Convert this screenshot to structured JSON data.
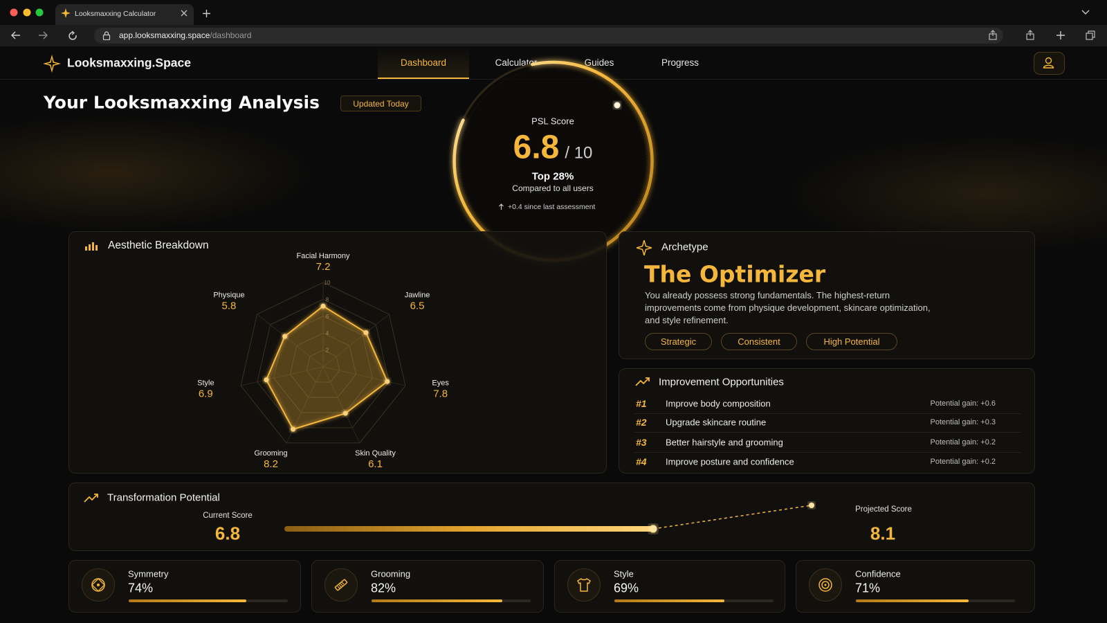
{
  "browser": {
    "tab_title": "Looksmaxxing Calculator",
    "url": {
      "host": "app.looksmaxxing.space",
      "path": "/dashboard"
    }
  },
  "nav": {
    "brand": "Looksmaxxing.Space",
    "links": [
      "Dashboard",
      "Calculator",
      "Guides",
      "Progress"
    ],
    "active_link": 0
  },
  "header": {
    "title": "Your Looksmaxxing Analysis",
    "badge": "Updated Today"
  },
  "score": {
    "label": "PSL Score",
    "value": 6.8,
    "scale": "/ 10",
    "rank": "Top 28%",
    "rank_note": "Compared to all users",
    "change": "+0.4 since last assessment"
  },
  "chart_data": {
    "type": "radar",
    "title": "Aesthetic Breakdown",
    "categories": [
      "Facial Harmony",
      "Jawline",
      "Eyes",
      "Skin Quality",
      "Grooming",
      "Style",
      "Physique"
    ],
    "values": [
      7.2,
      6.5,
      7.8,
      6.1,
      8.2,
      6.9,
      5.8
    ],
    "rlim": [
      0,
      10
    ],
    "rticks": [
      2,
      4,
      6,
      8,
      10
    ],
    "color": "#f5b73b"
  },
  "archetype": {
    "label": "Archetype",
    "name": "The Optimizer",
    "description": "You already possess strong fundamentals. The highest-return improvements come from physique development, skincare optimization, and style refinement.",
    "tags": [
      "Strategic",
      "Consistent",
      "High Potential"
    ]
  },
  "improvements": {
    "title": "Improvement Opportunities",
    "items": [
      {
        "rank": "#1",
        "text": "Improve body composition",
        "gain": "Potential gain: +0.6"
      },
      {
        "rank": "#2",
        "text": "Upgrade skincare routine",
        "gain": "Potential gain: +0.3"
      },
      {
        "rank": "#3",
        "text": "Better hairstyle and grooming",
        "gain": "Potential gain: +0.2"
      },
      {
        "rank": "#4",
        "text": "Improve posture and confidence",
        "gain": "Potential gain: +0.2"
      }
    ]
  },
  "transformation": {
    "title": "Transformation Potential",
    "current_label": "Current Score",
    "current": 6.8,
    "projected_label": "Projected Score",
    "projected": 8.1
  },
  "metrics": [
    {
      "label": "Symmetry",
      "value": 74,
      "value_label": "74%"
    },
    {
      "label": "Grooming",
      "value": 82,
      "value_label": "82%"
    },
    {
      "label": "Style",
      "value": 69,
      "value_label": "69%"
    },
    {
      "label": "Confidence",
      "value": 71,
      "value_label": "71%"
    }
  ]
}
